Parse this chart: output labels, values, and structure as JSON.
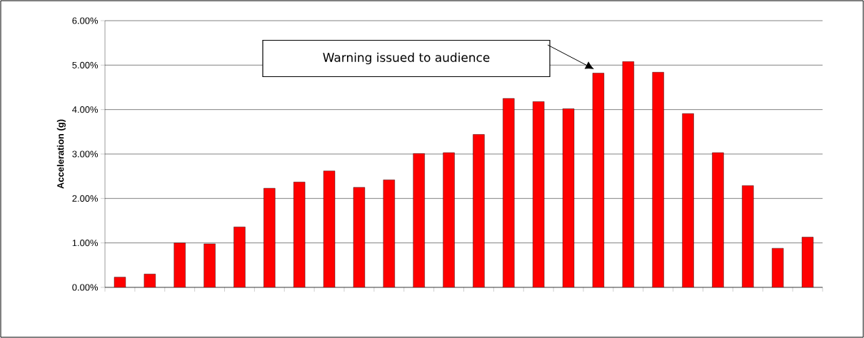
{
  "chart_data": {
    "type": "bar",
    "ylabel": "Acceleration (g)",
    "categories": [
      null,
      null,
      null,
      null,
      null,
      null,
      null,
      null,
      null,
      null,
      null,
      null,
      null,
      null,
      null,
      null,
      null,
      null,
      null,
      null,
      null,
      null,
      null,
      null
    ],
    "values": [
      0.23,
      0.3,
      1.0,
      0.98,
      1.36,
      2.23,
      2.37,
      2.62,
      2.25,
      2.42,
      3.01,
      3.03,
      3.44,
      4.25,
      4.18,
      4.02,
      4.82,
      5.08,
      4.84,
      3.91,
      3.03,
      2.29,
      0.88,
      1.13
    ],
    "color": "#ff0000",
    "ylim": [
      0,
      6
    ],
    "yticks": [
      {
        "value": 0,
        "label": "0.00%"
      },
      {
        "value": 1,
        "label": "1.00%"
      },
      {
        "value": 2,
        "label": "2.00%"
      },
      {
        "value": 3,
        "label": "3.00%"
      },
      {
        "value": 4,
        "label": "4.00%"
      },
      {
        "value": 5,
        "label": "5.00%"
      },
      {
        "value": 6,
        "label": "6.00%"
      }
    ],
    "grid": "y",
    "annotations": [
      "Warning issued to audience"
    ]
  }
}
